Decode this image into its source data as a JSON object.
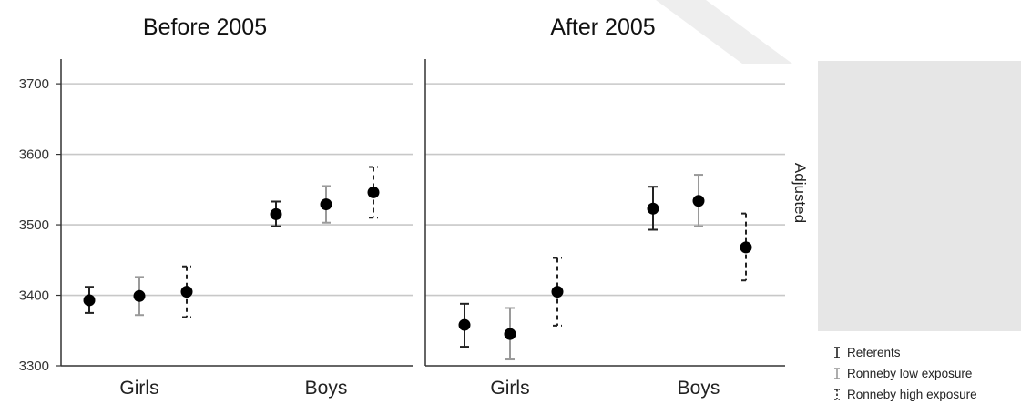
{
  "chart_data": {
    "type": "scatter",
    "subtype": "point-with-error-bars",
    "panels": [
      {
        "title": "Before 2005",
        "categories": [
          "Girls",
          "Boys"
        ],
        "series": [
          {
            "name": "Referents",
            "values": [
              3393,
              3515
            ],
            "lower": [
              3375,
              3498
            ],
            "upper": [
              3412,
              3533
            ]
          },
          {
            "name": "Ronneby low exposure",
            "values": [
              3399,
              3529
            ],
            "lower": [
              3372,
              3503
            ],
            "upper": [
              3426,
              3555
            ]
          },
          {
            "name": "Ronneby high exposure",
            "values": [
              3405,
              3546
            ],
            "lower": [
              3369,
              3510
            ],
            "upper": [
              3441,
              3582
            ]
          }
        ]
      },
      {
        "title": "After 2005",
        "categories": [
          "Girls",
          "Boys"
        ],
        "series": [
          {
            "name": "Referents",
            "values": [
              3358,
              3523
            ],
            "lower": [
              3327,
              3493
            ],
            "upper": [
              3388,
              3554
            ]
          },
          {
            "name": "Ronneby low exposure",
            "values": [
              3345,
              3534
            ],
            "lower": [
              3309,
              3498
            ],
            "upper": [
              3382,
              3571
            ]
          },
          {
            "name": "Ronneby high exposure",
            "values": [
              3405,
              3468
            ],
            "lower": [
              3357,
              3421
            ],
            "upper": [
              3453,
              3516
            ]
          }
        ]
      }
    ],
    "yticks": [
      3300,
      3400,
      3500,
      3600,
      3700
    ],
    "ylim": [
      3300,
      3735
    ],
    "grid": true,
    "side_label": "Adjusted",
    "legend": {
      "placement": "bottom-right",
      "entries": [
        "Referents",
        "Ronneby low exposure",
        "Ronneby high exposure"
      ]
    },
    "series_styles": {
      "Referents": {
        "color": "#222222",
        "dash": "solid"
      },
      "Ronneby low exposure": {
        "color": "#9a9a9a",
        "dash": "solid"
      },
      "Ronneby high exposure": {
        "color": "#222222",
        "dash": "dashed"
      }
    },
    "colors": {
      "grid": "#c8c8c8",
      "axis": "#333333",
      "marker": "#000000",
      "side_box": "#e6e6e6"
    }
  }
}
